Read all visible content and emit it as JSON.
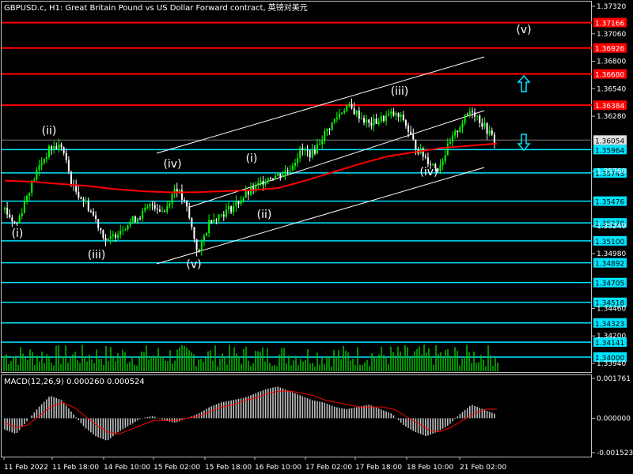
{
  "header": {
    "title": "GBPUSD.c, H1:  Great Britain Pound vs US Dollar Forward contract, 英镑对美元"
  },
  "macd_label": "MACD(12,26,9) 0.000260 0.000524",
  "colors": {
    "background": "#000000",
    "frame": "#c0c0c0",
    "bull_candle": "#00ff00",
    "bear_candle": "#ffffff",
    "ma_line": "#ff0000",
    "channel": "#ffffff",
    "support_line": "#00e5ff",
    "resistance_line": "#ff0000",
    "volume": "#00c000",
    "macd_hist": "#c0c0c0",
    "macd_signal": "#ff0000",
    "current_price_tag": "#e0e0e0",
    "arrow": "#00e5ff"
  },
  "chart_data": {
    "type": "line",
    "symbol": "GBPUSD.c",
    "timeframe": "H1",
    "title": "GBPUSD.c, H1:  Great Britain Pound vs US Dollar Forward contract, 英镑对美元",
    "price_axis": {
      "ticks": [
        "1.37320",
        "1.37060",
        "1.36800",
        "1.36540",
        "1.36280",
        "1.35760",
        "1.35240",
        "1.34980",
        "1.34460",
        "1.34200",
        "1.33940"
      ],
      "range": [
        1.3385,
        1.3738
      ]
    },
    "time_axis_ticks": [
      "11 Feb 2022",
      "11 Feb 18:00",
      "14 Feb 10:00",
      "15 Feb 02:00",
      "15 Feb 18:00",
      "16 Feb 10:00",
      "17 Feb 02:00",
      "17 Feb 18:00",
      "18 Feb 10:00",
      "21 Feb 02:00"
    ],
    "current_price": "1.36054",
    "resistance_levels": [
      "1.37166",
      "1.36926",
      "1.36680",
      "1.36384"
    ],
    "support_levels": [
      "1.35964",
      "1.35743",
      "1.35476",
      "1.35270",
      "1.35100",
      "1.34892",
      "1.34705",
      "1.34518",
      "1.34323",
      "1.34141",
      "1.34000"
    ],
    "wave_labels": [
      "(i)",
      "(ii)",
      "(iii)",
      "(iv)",
      "(v)",
      "(i)",
      "(ii)",
      "(iii)",
      "(iv)",
      "(v)"
    ],
    "price_series": [
      1.354,
      1.3524,
      1.3555,
      1.358,
      1.3598,
      1.36,
      1.356,
      1.3548,
      1.353,
      1.3508,
      1.352,
      1.3528,
      1.3535,
      1.3545,
      1.3537,
      1.3562,
      1.354,
      1.3497,
      1.353,
      1.3535,
      1.3542,
      1.3552,
      1.356,
      1.357,
      1.3572,
      1.3578,
      1.3596,
      1.3592,
      1.361,
      1.3625,
      1.3638,
      1.363,
      1.362,
      1.3625,
      1.363,
      1.3625,
      1.36,
      1.3588,
      1.3578,
      1.36,
      1.362,
      1.3635,
      1.362,
      1.3605
    ],
    "moving_average": [
      1.3567,
      1.3566,
      1.3564,
      1.3562,
      1.3559,
      1.3557,
      1.3556,
      1.3556,
      1.3557,
      1.3558,
      1.356,
      1.3567,
      1.3575,
      1.3583,
      1.359,
      1.3594,
      1.3598,
      1.36,
      1.3602
    ],
    "macd_axis": {
      "ticks": [
        "0.001761",
        "0.000000",
        "-0.001523"
      ],
      "range": [
        -0.001523,
        0.001761
      ]
    },
    "macd_histogram": [
      -0.0005,
      -0.0007,
      -0.0001,
      0.0005,
      0.001,
      0.0008,
      0.0002,
      -0.0004,
      -0.0008,
      -0.001,
      -0.0006,
      -0.0003,
      0.0,
      0.0001,
      -0.0001,
      -0.0002,
      0.0,
      0.0002,
      0.0005,
      0.0007,
      0.0008,
      0.0009,
      0.0011,
      0.0013,
      0.0014,
      0.0012,
      0.001,
      0.0008,
      0.0007,
      0.0005,
      0.0004,
      0.0005,
      0.0006,
      0.0004,
      0.0002,
      -0.0003,
      -0.0006,
      -0.0008,
      -0.0006,
      -0.0003,
      0.0002,
      0.0006,
      0.0004,
      0.0002
    ],
    "macd_signal": [
      -0.0002,
      -0.0004,
      -0.0003,
      0.0001,
      0.0005,
      0.0007,
      0.0005,
      0.0001,
      -0.0003,
      -0.0006,
      -0.0007,
      -0.0005,
      -0.0003,
      -0.0001,
      -0.0001,
      -0.0001,
      0.0,
      0.0001,
      0.0003,
      0.0005,
      0.0006,
      0.0008,
      0.0009,
      0.0011,
      0.0012,
      0.0012,
      0.0011,
      0.001,
      0.0008,
      0.0007,
      0.0006,
      0.0005,
      0.0005,
      0.0005,
      0.0004,
      0.0001,
      -0.0002,
      -0.0005,
      -0.0006,
      -0.0004,
      -0.0001,
      0.0002,
      0.0004,
      0.0004
    ]
  }
}
